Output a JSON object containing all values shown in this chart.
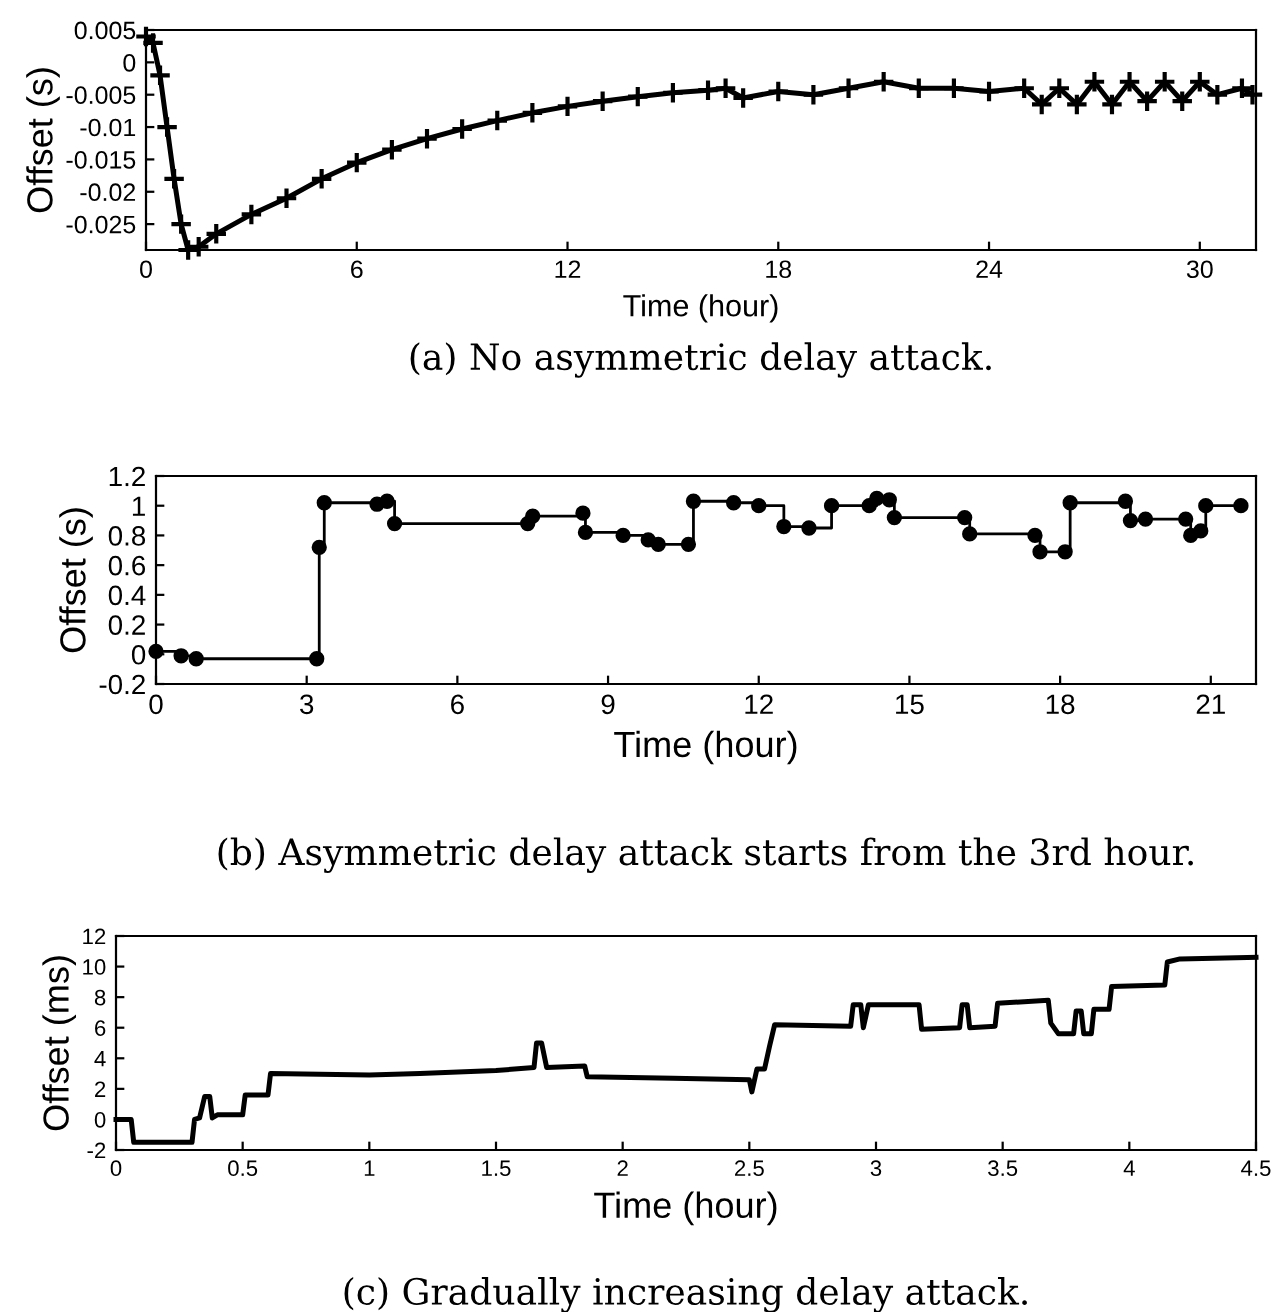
{
  "chart_data": [
    {
      "type": "line",
      "title": "(a) No asymmetric delay attack.",
      "xlabel": "Time (hour)",
      "ylabel": "Offset (s)",
      "marker": "cross",
      "grid": false,
      "legend": false,
      "x": [
        0,
        0.2,
        0.4,
        0.6,
        0.8,
        1.0,
        1.2,
        1.5,
        2,
        3,
        4,
        5,
        6,
        7,
        8,
        9,
        10,
        11,
        12,
        13,
        14,
        15,
        16,
        16.5,
        17,
        18,
        19,
        20,
        21,
        22,
        23,
        24,
        25,
        25.5,
        26,
        26.5,
        27,
        27.5,
        28,
        28.5,
        29,
        29.5,
        30,
        30.5,
        31.2,
        31.5
      ],
      "series": [
        {
          "color": "#000000",
          "values": [
            0.004,
            0.003,
            -0.002,
            -0.01,
            -0.018,
            -0.025,
            -0.029,
            -0.0285,
            -0.0265,
            -0.0235,
            -0.021,
            -0.018,
            -0.0155,
            -0.0135,
            -0.0118,
            -0.0103,
            -0.009,
            -0.0078,
            -0.0068,
            -0.006,
            -0.0053,
            -0.0047,
            -0.0043,
            -0.004,
            -0.0055,
            -0.0045,
            -0.005,
            -0.004,
            -0.003,
            -0.004,
            -0.004,
            -0.0045,
            -0.004,
            -0.0065,
            -0.004,
            -0.0065,
            -0.003,
            -0.0065,
            -0.003,
            -0.006,
            -0.003,
            -0.006,
            -0.003,
            -0.005,
            -0.004,
            -0.005
          ]
        }
      ],
      "xlim": [
        0,
        31.6
      ],
      "ylim": [
        -0.029,
        0.005
      ],
      "xticks": [
        0,
        6,
        12,
        18,
        24,
        30
      ],
      "yticks": [
        0.005,
        0,
        -0.005,
        -0.01,
        -0.015,
        -0.02,
        -0.025
      ]
    },
    {
      "type": "step",
      "title": "(b) Asymmetric delay attack starts from the 3rd hour.",
      "xlabel": "Time (hour)",
      "ylabel": "Offset (s)",
      "marker": "circle",
      "grid": false,
      "legend": false,
      "x": [
        0,
        0.5,
        0.8,
        3.2,
        3.25,
        3.35,
        4.4,
        4.6,
        4.75,
        7.4,
        7.5,
        8.5,
        8.55,
        9.3,
        9.8,
        10.0,
        10.6,
        10.7,
        11.5,
        12.0,
        12.5,
        13.0,
        13.45,
        14.2,
        14.35,
        14.6,
        14.7,
        16.1,
        16.2,
        17.5,
        17.6,
        18.1,
        18.2,
        19.3,
        19.4,
        19.7,
        20.5,
        20.6,
        20.8,
        20.9,
        21.6
      ],
      "series": [
        {
          "color": "#000000",
          "values": [
            0.02,
            -0.01,
            -0.03,
            -0.03,
            0.72,
            1.02,
            1.01,
            1.03,
            0.88,
            0.88,
            0.93,
            0.95,
            0.82,
            0.8,
            0.77,
            0.74,
            0.74,
            1.03,
            1.02,
            1.0,
            0.86,
            0.85,
            1.0,
            1.0,
            1.05,
            1.04,
            0.92,
            0.92,
            0.81,
            0.8,
            0.69,
            0.69,
            1.02,
            1.03,
            0.9,
            0.91,
            0.91,
            0.8,
            0.83,
            1.0,
            1.0
          ]
        }
      ],
      "xlim": [
        0,
        21.9
      ],
      "ylim": [
        -0.2,
        1.2
      ],
      "xticks": [
        0,
        3,
        6,
        9,
        12,
        15,
        18,
        21
      ],
      "yticks": [
        -0.2,
        0,
        0.2,
        0.4,
        0.6,
        0.8,
        1,
        1.2
      ]
    },
    {
      "type": "line",
      "title": "(c) Gradually increasing delay attack.",
      "xlabel": "Time (hour)",
      "ylabel": "Offset (ms)",
      "grid": false,
      "legend": false,
      "x": [
        0,
        0.06,
        0.07,
        0.3,
        0.31,
        0.33,
        0.35,
        0.37,
        0.38,
        0.4,
        0.5,
        0.51,
        0.6,
        0.61,
        1.0,
        1.2,
        1.5,
        1.65,
        1.66,
        1.68,
        1.7,
        1.85,
        1.86,
        2.2,
        2.5,
        2.51,
        2.53,
        2.56,
        2.58,
        2.6,
        2.9,
        2.91,
        2.94,
        2.95,
        2.97,
        3.17,
        3.18,
        3.33,
        3.34,
        3.36,
        3.37,
        3.47,
        3.48,
        3.68,
        3.69,
        3.72,
        3.78,
        3.79,
        3.81,
        3.82,
        3.85,
        3.86,
        3.92,
        3.93,
        4.14,
        4.15,
        4.2,
        4.5
      ],
      "series": [
        {
          "color": "#000000",
          "values": [
            0,
            0,
            -1.5,
            -1.5,
            0,
            0.1,
            1.5,
            1.5,
            0.1,
            0.3,
            0.3,
            1.6,
            1.6,
            3.0,
            2.9,
            3.0,
            3.2,
            3.4,
            5.0,
            5.0,
            3.4,
            3.5,
            2.8,
            2.7,
            2.6,
            1.8,
            3.3,
            3.3,
            4.8,
            6.2,
            6.1,
            7.5,
            7.5,
            6.0,
            7.5,
            7.5,
            5.9,
            6.0,
            7.5,
            7.5,
            6.0,
            6.1,
            7.6,
            7.8,
            6.3,
            5.6,
            5.6,
            7.1,
            7.1,
            5.6,
            5.6,
            7.2,
            7.2,
            8.7,
            8.8,
            10.3,
            10.5,
            10.6
          ]
        }
      ],
      "xlim": [
        0,
        4.5
      ],
      "ylim": [
        -2,
        12
      ],
      "xticks": [
        0,
        0.5,
        1,
        1.5,
        2,
        2.5,
        3,
        3.5,
        4,
        4.5
      ],
      "yticks": [
        -2,
        0,
        2,
        4,
        6,
        8,
        10,
        12
      ]
    }
  ]
}
